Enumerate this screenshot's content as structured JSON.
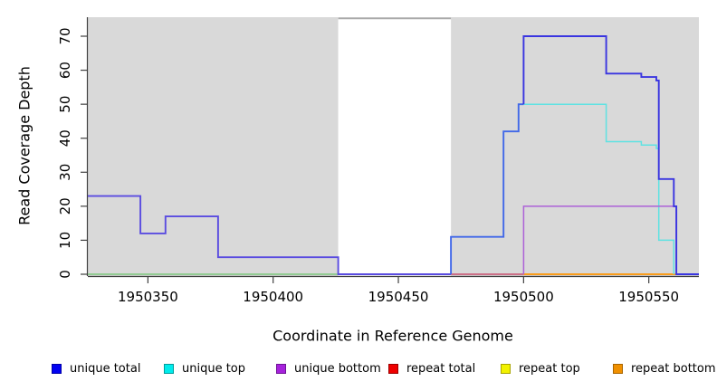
{
  "chart_data": {
    "type": "line",
    "subtype": "step-coverage",
    "title": "",
    "xlabel": "Coordinate in Reference Genome",
    "ylabel": "Read Coverage Depth",
    "xlim": [
      1950326,
      1950570
    ],
    "ylim": [
      0,
      75.6
    ],
    "grid": false,
    "x_ticks": [
      1950350,
      1950400,
      1950450,
      1950500,
      1950550
    ],
    "x_tick_labels": [
      "1950350",
      "1950400",
      "1950450",
      "1950500",
      "1950550"
    ],
    "y_ticks": [
      0,
      10,
      20,
      30,
      40,
      50,
      60,
      70
    ],
    "y_tick_labels": [
      "0",
      "10",
      "20",
      "30",
      "40",
      "50",
      "60",
      "70"
    ],
    "background_regions": [
      {
        "name": "covered-region-left",
        "start": 1950326,
        "end": 1950426,
        "color": "#d9d9d9"
      },
      {
        "name": "gap-region",
        "start": 1950426,
        "end": 1950471,
        "color": "#ffffff"
      },
      {
        "name": "covered-region-right",
        "start": 1950471,
        "end": 1950570,
        "color": "#d9d9d9"
      }
    ],
    "gap_top_line": {
      "from": 1950426,
      "to": 1950471,
      "color": "#a9a9a9"
    },
    "series": [
      {
        "name": "unique total",
        "color": "#0000f0",
        "steps": [
          [
            1950326,
            23
          ],
          [
            1950347,
            12
          ],
          [
            1950357,
            17
          ],
          [
            1950378,
            5
          ],
          [
            1950426,
            0
          ],
          [
            1950471,
            11
          ],
          [
            1950492,
            42
          ],
          [
            1950498,
            50
          ],
          [
            1950500,
            70
          ],
          [
            1950533,
            59
          ],
          [
            1950547,
            58
          ],
          [
            1950553,
            57
          ],
          [
            1950554,
            28
          ],
          [
            1950560,
            20
          ],
          [
            1950561,
            0
          ],
          [
            1950570,
            0
          ]
        ]
      },
      {
        "name": "unique top",
        "color": "#00e0e0",
        "steps": [
          [
            1950326,
            0
          ],
          [
            1950500,
            50
          ],
          [
            1950533,
            39
          ],
          [
            1950547,
            38
          ],
          [
            1950553,
            37
          ],
          [
            1950554,
            10
          ],
          [
            1950560,
            0
          ],
          [
            1950570,
            0
          ]
        ]
      },
      {
        "name": "unique bottom",
        "color": "#a020f0",
        "steps": [
          [
            1950326,
            0
          ],
          [
            1950500,
            20
          ],
          [
            1950561,
            0
          ],
          [
            1950570,
            0
          ]
        ]
      },
      {
        "name": "repeat total",
        "color": "#e00000",
        "steps": [
          [
            1950326,
            0
          ],
          [
            1950570,
            0
          ]
        ]
      },
      {
        "name": "repeat top",
        "color": "#f0f000",
        "steps": [
          [
            1950326,
            0
          ],
          [
            1950570,
            0
          ]
        ]
      },
      {
        "name": "repeat bottom",
        "color": "#f09000",
        "steps": [
          [
            1950326,
            0
          ],
          [
            1950570,
            0
          ]
        ]
      }
    ],
    "draw_segments": [
      {
        "name": "baseline-green",
        "color": "#7cc87c",
        "width": 1.4,
        "steps": [
          [
            1950326,
            0
          ],
          [
            1950426,
            0
          ]
        ]
      },
      {
        "name": "unique-total-left",
        "color": "#5a4ce0",
        "width": 1.9,
        "steps": [
          [
            1950326,
            23
          ],
          [
            1950347,
            12
          ],
          [
            1950357,
            17
          ],
          [
            1950378,
            5
          ],
          [
            1950426,
            0
          ],
          [
            1950471,
            0
          ]
        ]
      },
      {
        "name": "repeat-total-zero",
        "color": "#c84e6e",
        "width": 1.4,
        "steps": [
          [
            1950471,
            0
          ],
          [
            1950500,
            0
          ]
        ]
      },
      {
        "name": "repeat-bottom-zero",
        "color": "#ff9400",
        "width": 1.7,
        "steps": [
          [
            1950500,
            0
          ],
          [
            1950561,
            0
          ]
        ]
      },
      {
        "name": "unique-total-mid",
        "color": "#4168e8",
        "width": 1.9,
        "steps": [
          [
            1950471,
            0
          ],
          [
            1950471,
            11
          ],
          [
            1950492,
            42
          ],
          [
            1950498,
            50
          ],
          [
            1950500,
            50
          ]
        ]
      },
      {
        "name": "unique-top-line",
        "color": "#5fe2e2",
        "width": 1.5,
        "steps": [
          [
            1950500,
            50
          ],
          [
            1950533,
            39
          ],
          [
            1950547,
            38
          ],
          [
            1950553,
            37
          ],
          [
            1950554,
            10
          ],
          [
            1950560,
            0
          ],
          [
            1950560,
            0
          ]
        ]
      },
      {
        "name": "unique-bottom-line",
        "color": "#ad62d8",
        "width": 1.5,
        "steps": [
          [
            1950500,
            0
          ],
          [
            1950500,
            20
          ],
          [
            1950561,
            20
          ],
          [
            1950561,
            0
          ]
        ]
      },
      {
        "name": "unique-total-right",
        "color": "#3a35e0",
        "width": 1.9,
        "steps": [
          [
            1950500,
            50
          ],
          [
            1950500,
            70
          ],
          [
            1950533,
            59
          ],
          [
            1950547,
            58
          ],
          [
            1950553,
            57
          ],
          [
            1950554,
            28
          ],
          [
            1950560,
            20
          ],
          [
            1950561,
            0
          ],
          [
            1950570,
            0
          ]
        ]
      }
    ]
  },
  "legend": {
    "items": [
      {
        "label": "unique total",
        "fill": "#0202f2",
        "border": "#0000a8"
      },
      {
        "label": "unique top",
        "fill": "#00ecec",
        "border": "#009c9c"
      },
      {
        "label": "unique bottom",
        "fill": "#a622dc",
        "border": "#6f1396"
      },
      {
        "label": "repeat total",
        "fill": "#ef0000",
        "border": "#9c0000"
      },
      {
        "label": "repeat top",
        "fill": "#f2f200",
        "border": "#a8a400"
      },
      {
        "label": "repeat bottom",
        "fill": "#f09000",
        "border": "#a86400"
      }
    ]
  }
}
